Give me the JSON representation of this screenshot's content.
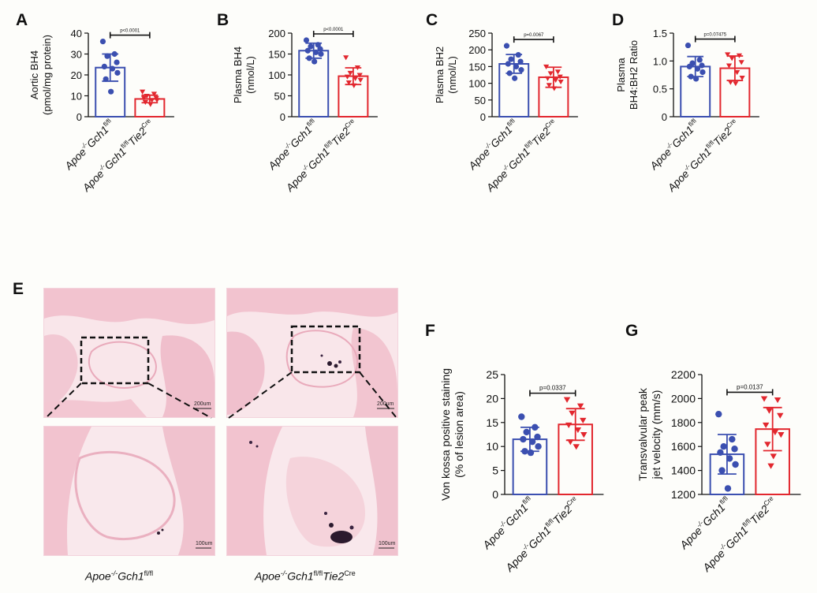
{
  "panel_letters": {
    "A": "A",
    "B": "B",
    "C": "C",
    "D": "D",
    "E": "E",
    "F": "F",
    "G": "G"
  },
  "group_labels": {
    "control": {
      "prefix": "Apoe",
      "prefix_sup": "-/-",
      "gene": "Gch1",
      "gene_sup": "fl/fl"
    },
    "treated": {
      "prefix": "Apoe",
      "prefix_sup": "-/-",
      "gene": "Gch1",
      "gene_sup": "fl/fl",
      "gene2": "Tie2",
      "gene2_sup": "Cre"
    }
  },
  "histology": {
    "scale_top": "200um",
    "scale_bottom": "100um",
    "label_control": {
      "prefix": "Apoe",
      "prefix_sup": "-/-",
      "gene": "Gch1",
      "gene_sup": "fl/fl"
    },
    "label_treated": {
      "prefix": "Apoe",
      "prefix_sup": "-/-",
      "gene": "Gch1",
      "gene_sup": "fl/fl",
      "gene2": "Tie2",
      "gene2_sup": "Cre"
    }
  },
  "colors": {
    "control": "#3b4fb0",
    "treated": "#e2272e",
    "tissue": "#f4c9d3",
    "tissue_light": "#f8dce3",
    "stain": "#2b1a2e"
  },
  "chart_data": [
    {
      "id": "A",
      "type": "bar",
      "ylabel_lines": [
        "Aortic BH4",
        "(pmol/mg protein)"
      ],
      "ylim": [
        0,
        40
      ],
      "yticks": [
        0,
        10,
        20,
        30,
        40
      ],
      "ytick_labels": [
        "0",
        "10",
        "20",
        "30",
        "40"
      ],
      "pvalue": "p<0.0001",
      "series": [
        {
          "name": "Apoe-/-Gch1fl/fl",
          "mean": 23.5,
          "sd": 6.5,
          "points": [
            36,
            30,
            29,
            26,
            24,
            23,
            21,
            18,
            12
          ]
        },
        {
          "name": "Apoe-/-Gch1fl/flTie2Cre",
          "mean": 8.5,
          "sd": 1.8,
          "points": [
            12,
            11,
            10,
            9,
            9,
            8,
            8,
            7,
            6
          ]
        }
      ]
    },
    {
      "id": "B",
      "type": "bar",
      "ylabel_lines": [
        "Plasma BH4",
        "(nmol/L)"
      ],
      "ylim": [
        0,
        200
      ],
      "yticks": [
        0,
        50,
        100,
        150,
        200
      ],
      "ytick_labels": [
        "0",
        "50",
        "100",
        "150",
        "200"
      ],
      "pvalue": "p<0.0001",
      "series": [
        {
          "name": "Apoe-/-Gch1fl/fl",
          "mean": 158,
          "sd": 18,
          "points": [
            183,
            172,
            168,
            162,
            158,
            154,
            150,
            140,
            132
          ]
        },
        {
          "name": "Apoe-/-Gch1fl/flTie2Cre",
          "mean": 97,
          "sd": 20,
          "points": [
            142,
            118,
            105,
            100,
            96,
            92,
            88,
            82,
            75
          ]
        }
      ]
    },
    {
      "id": "C",
      "type": "bar",
      "ylabel_lines": [
        "Plasma BH2",
        "(nmol/L)"
      ],
      "ylim": [
        0,
        250
      ],
      "yticks": [
        0,
        50,
        100,
        150,
        200,
        250
      ],
      "ytick_labels": [
        "0",
        "50",
        "100",
        "150",
        "200",
        "250"
      ],
      "pvalue": "p=0.0067",
      "series": [
        {
          "name": "Apoe-/-Gch1fl/fl",
          "mean": 158,
          "sd": 28,
          "points": [
            212,
            185,
            172,
            165,
            158,
            150,
            140,
            130,
            115
          ]
        },
        {
          "name": "Apoe-/-Gch1fl/flTie2Cre",
          "mean": 118,
          "sd": 30,
          "points": [
            150,
            135,
            130,
            120,
            115,
            110,
            105,
            95,
            85
          ]
        }
      ]
    },
    {
      "id": "D",
      "type": "bar",
      "ylabel_lines": [
        "Plasma",
        "BH4:BH2 Ratio"
      ],
      "ylim": [
        0,
        1.5
      ],
      "yticks": [
        0,
        0.5,
        1.0,
        1.5
      ],
      "ytick_labels": [
        "0",
        "0.5",
        "1.0",
        "1.5"
      ],
      "pvalue": "p=0.07475",
      "series": [
        {
          "name": "Apoe-/-Gch1fl/fl",
          "mean": 0.9,
          "sd": 0.18,
          "points": [
            1.28,
            1.02,
            0.96,
            0.92,
            0.9,
            0.86,
            0.8,
            0.72,
            0.68
          ]
        },
        {
          "name": "Apoe-/-Gch1fl/flTie2Cre",
          "mean": 0.87,
          "sd": 0.22,
          "points": [
            1.12,
            1.1,
            1.05,
            0.98,
            0.92,
            0.8,
            0.7,
            0.62,
            0.6
          ]
        }
      ]
    },
    {
      "id": "F",
      "type": "bar",
      "ylabel_lines": [
        "Von kossa positive staining",
        "(% of lesion area)"
      ],
      "ylim": [
        0,
        25
      ],
      "yticks": [
        0,
        5,
        10,
        15,
        20,
        25
      ],
      "ytick_labels": [
        "0",
        "5",
        "10",
        "15",
        "20",
        "25"
      ],
      "pvalue": "p=0.0337",
      "series": [
        {
          "name": "Apoe-/-Gch1fl/fl",
          "mean": 11.5,
          "sd": 2.5,
          "points": [
            16.2,
            14,
            13,
            12,
            11.5,
            11,
            10,
            9,
            8.7
          ]
        },
        {
          "name": "Apoe-/-Gch1fl/flTie2Cre",
          "mean": 14.6,
          "sd": 3.3,
          "points": [
            19.8,
            18.5,
            17,
            15.5,
            14.5,
            13.5,
            12.5,
            11,
            10
          ]
        }
      ]
    },
    {
      "id": "G",
      "type": "bar",
      "ylabel_lines": [
        "Transvalvular peak",
        "jet velocity  (mm/s)"
      ],
      "ylim": [
        1200,
        2200
      ],
      "yticks": [
        1200,
        1400,
        1600,
        1800,
        2000,
        2200
      ],
      "ytick_labels": [
        "1200",
        "1400",
        "1600",
        "1800",
        "2000",
        "2200"
      ],
      "pvalue": "p=0.0137",
      "series": [
        {
          "name": "Apoe-/-Gch1fl/fl",
          "mean": 1535,
          "sd": 165,
          "points": [
            1870,
            1660,
            1600,
            1580,
            1550,
            1500,
            1450,
            1400,
            1250
          ]
        },
        {
          "name": "Apoe-/-Gch1fl/flTie2Cre",
          "mean": 1745,
          "sd": 180,
          "points": [
            2000,
            1990,
            1900,
            1860,
            1780,
            1720,
            1700,
            1620,
            1520,
            1440
          ]
        }
      ]
    }
  ]
}
